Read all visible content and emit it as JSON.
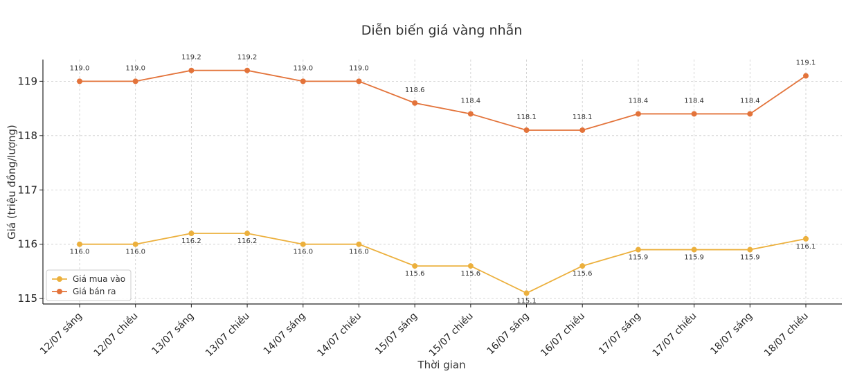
{
  "chart_data": {
    "type": "line",
    "title": "Diễn biến giá vàng nhẫn",
    "xlabel": "Thời gian",
    "ylabel": "Giá (triệu đồng/lượng)",
    "categories": [
      "12/07 sáng",
      "12/07 chiều",
      "13/07 sáng",
      "13/07 chiều",
      "14/07 sáng",
      "14/07 chiều",
      "15/07 sáng",
      "15/07 chiều",
      "16/07 sáng",
      "16/07 chiều",
      "17/07 sáng",
      "17/07 chiều",
      "18/07 sáng",
      "18/07 chiều"
    ],
    "ylim": [
      114.9,
      119.4
    ],
    "yticks": [
      115,
      116,
      117,
      118,
      119
    ],
    "grid": true,
    "legend_position": "bottom-left",
    "series": [
      {
        "name": "Giá mua vào",
        "color": "#ECB03D",
        "values": [
          116.0,
          116.0,
          116.2,
          116.2,
          116.0,
          116.0,
          115.6,
          115.6,
          115.1,
          115.6,
          115.9,
          115.9,
          115.9,
          116.1
        ],
        "labels": [
          "116.0",
          "116.0",
          "116.2",
          "116.2",
          "116.0",
          "116.0",
          "115.6",
          "115.6",
          "115.1",
          "115.6",
          "115.9",
          "115.9",
          "115.9",
          "116.1"
        ]
      },
      {
        "name": "Giá bán ra",
        "color": "#E3733A",
        "values": [
          119.0,
          119.0,
          119.2,
          119.2,
          119.0,
          119.0,
          118.6,
          118.4,
          118.1,
          118.1,
          118.4,
          118.4,
          118.4,
          119.1
        ],
        "labels": [
          "119.0",
          "119.0",
          "119.2",
          "119.2",
          "119.0",
          "119.0",
          "118.6",
          "118.4",
          "118.1",
          "118.1",
          "118.4",
          "118.4",
          "118.4",
          "119.1"
        ]
      }
    ]
  }
}
